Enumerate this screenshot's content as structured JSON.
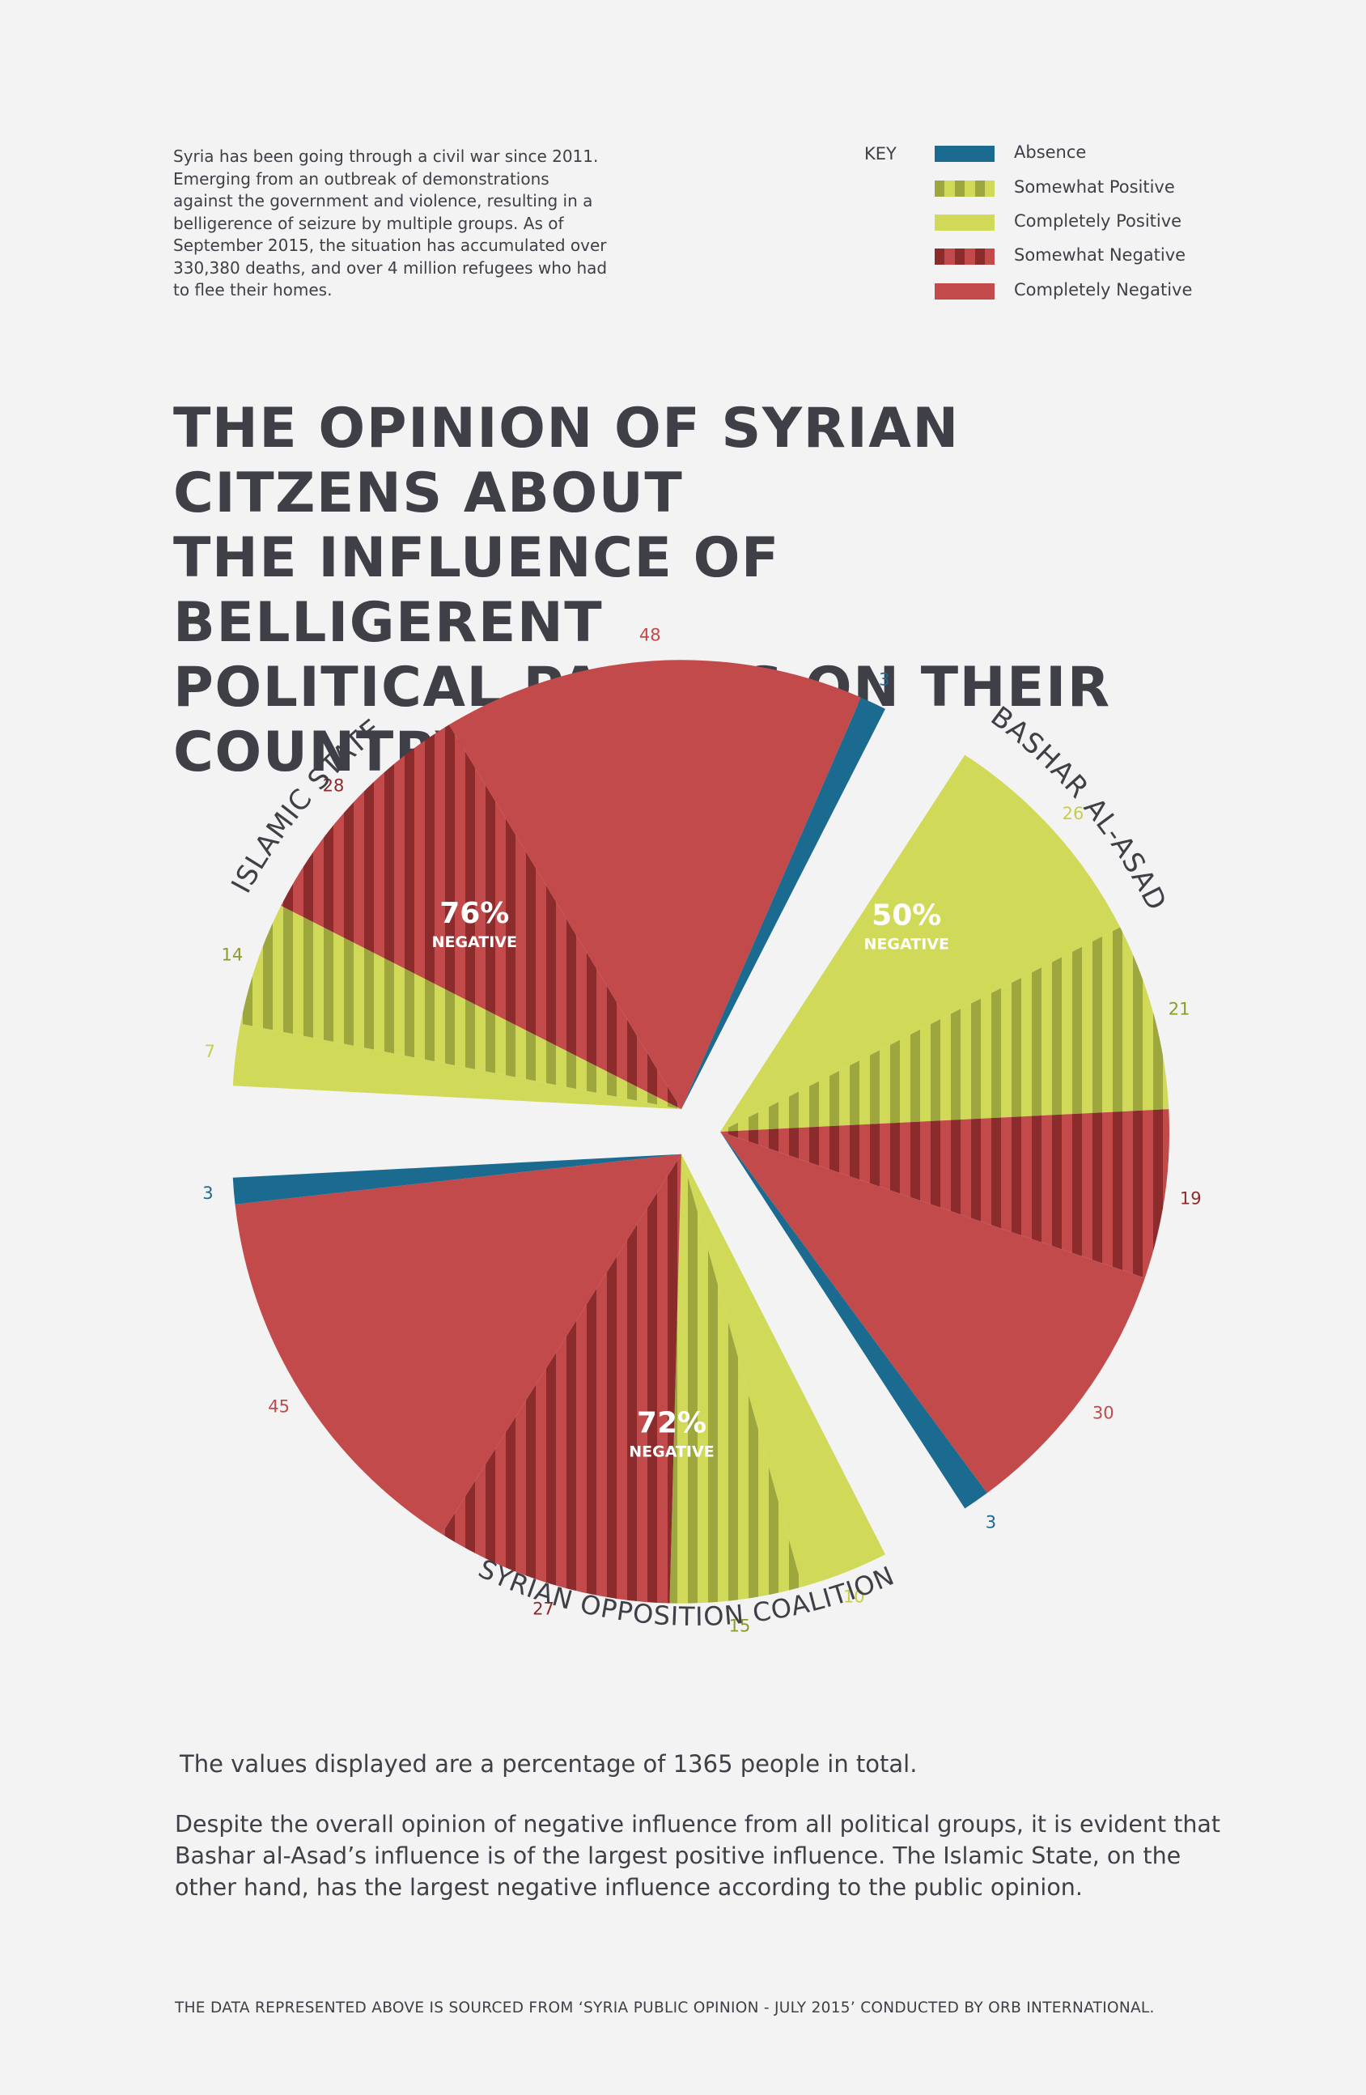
{
  "intro_text": "Syria has been going through a civil war since 2011. Emerging from an outbreak of demonstrations against the government and violence, resulting in a belligerence of seizure by multiple groups. As of September 2015, the situation has accumulated over 330,380 deaths, and over 4 million refugees who had to flee their homes.",
  "legend": {
    "key_label": "KEY",
    "items": [
      {
        "label": "Absence",
        "color": "#1b6a8f",
        "pattern": "solid"
      },
      {
        "label": "Somewhat Positive",
        "color": "#d1da58",
        "pattern": "striped"
      },
      {
        "label": "Completely Positive",
        "color": "#d1da58",
        "pattern": "solid"
      },
      {
        "label": "Somewhat Negative",
        "color": "#c24a4b",
        "pattern": "striped"
      },
      {
        "label": "Completely Negative",
        "color": "#c24a4b",
        "pattern": "solid"
      }
    ]
  },
  "title_lines": [
    "THE OPINION OF SYRIAN CITZENS ABOUT",
    "THE INFLUENCE OF BELLIGERENT",
    "POLITICAL PARTIES ON THEIR COUNTRY"
  ],
  "colors": {
    "absence": "#1b6a8f",
    "positive": "#d1da58",
    "positive_stripe": "#9ea63e",
    "negative": "#c24a4b",
    "negative_stripe": "#8c2b2c",
    "text": "#3e3f47",
    "background": "#f3f3f3"
  },
  "chart_data": {
    "type": "pie",
    "title": "THE OPINION OF SYRIAN CITZENS ABOUT THE INFLUENCE OF BELLIGERENT POLITICAL PARTIES ON THEIR COUNTRY",
    "unit": "percent",
    "categories": [
      "Completely Positive",
      "Somewhat Positive",
      "Somewhat Negative",
      "Completely Negative",
      "Absence"
    ],
    "groups": [
      {
        "name": "BASHAR AL-ASAD",
        "values": {
          "Completely Positive": 26,
          "Somewhat Positive": 21,
          "Somewhat Negative": 19,
          "Completely Negative": 30,
          "Absence": 3
        },
        "summary_value": "50%",
        "summary_label": "NEGATIVE"
      },
      {
        "name": "SYRIAN OPPOSITION COALITION",
        "values": {
          "Completely Positive": 10,
          "Somewhat Positive": 15,
          "Somewhat Negative": 27,
          "Completely Negative": 45,
          "Absence": 3
        },
        "summary_value": "72%",
        "summary_label": "NEGATIVE"
      },
      {
        "name": "ISLAMIC STATE",
        "values": {
          "Completely Positive": 7,
          "Somewhat Positive": 14,
          "Somewhat Negative": 28,
          "Completely Negative": 48,
          "Absence": 3
        },
        "summary_value": "76%",
        "summary_label": "NEGATIVE"
      }
    ]
  },
  "note_text": "The values displayed are a percentage of 1365 people in total.",
  "conclusion_text": "Despite the overall opinion of negative influence from all political groups, it is evident that Bashar al-Asad’s influence is of the largest positive influence. The Islamic State, on the other hand, has the largest negative influence according to the public opinion.",
  "source_text": "THE DATA REPRESENTED ABOVE IS SOURCED FROM ‘SYRIA PUBLIC OPINION - JULY 2015’ CONDUCTED BY ORB INTERNATIONAL."
}
